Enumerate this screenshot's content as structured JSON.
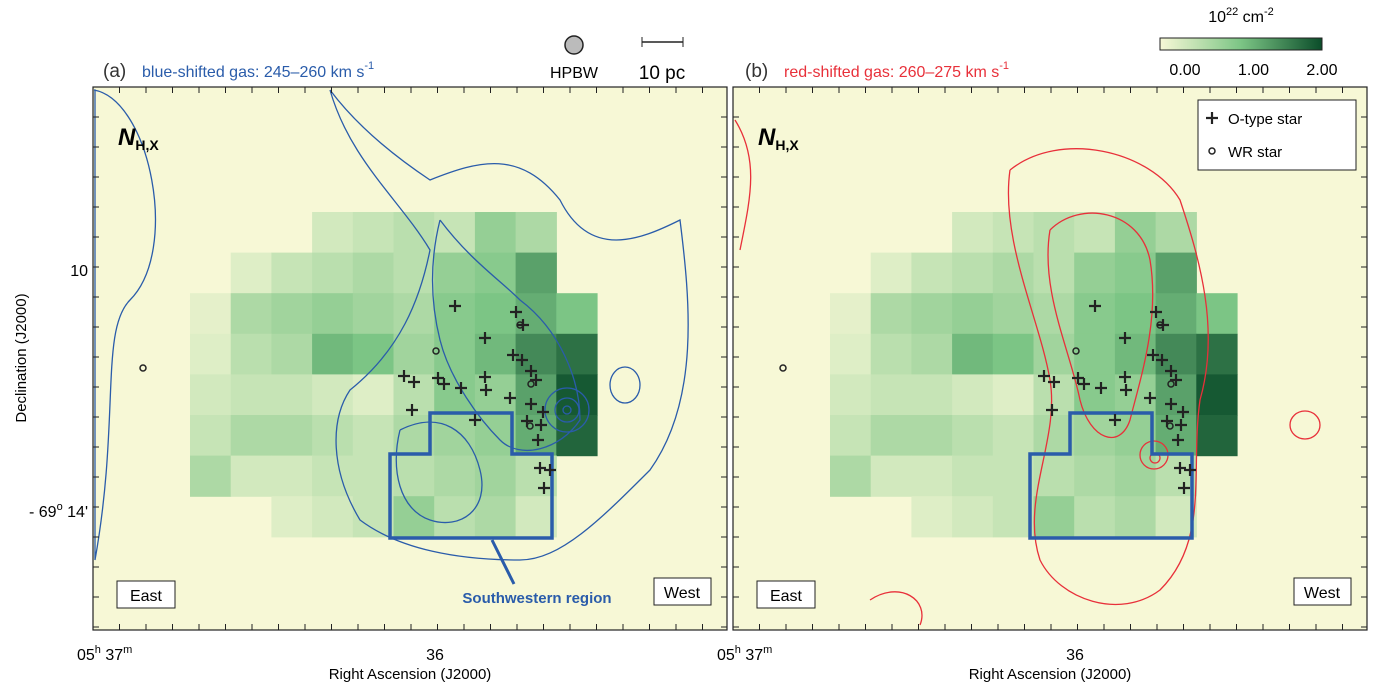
{
  "panels": [
    {
      "label": "(a)",
      "title": "blue-shifted gas: 245–260 km s",
      "title_exp": "-1",
      "quantity": "N",
      "quantity_sub": "H,X",
      "east": "East",
      "west": "West",
      "x_ticks": [
        {
          "base": "05",
          "h": "h",
          "min": " 37",
          "m": "m"
        },
        {
          "label": "36"
        }
      ],
      "x_axis_label": "Right Ascension (J2000)",
      "region_label": "Southwestern region"
    },
    {
      "label": "(b)",
      "title": "red-shifted gas: 260–275 km s",
      "title_exp": "-1",
      "quantity": "N",
      "quantity_sub": "H,X",
      "east": "East",
      "west": "West",
      "x_ticks": [
        {
          "base": "05",
          "h": "h",
          "min": " 37",
          "m": "m"
        },
        {
          "label": "36"
        }
      ],
      "x_axis_label": "Right Ascension (J2000)"
    }
  ],
  "y_axis": {
    "label": "Declination (J2000)",
    "tick_top": "10",
    "tick_bottom": {
      "base": "- 69",
      "deg": "o",
      "min": " 14'"
    }
  },
  "beam": "HPBW",
  "scale_bar": "10 pc",
  "legend": {
    "o_star": "O-type star",
    "wr_star": "WR star"
  },
  "nh_map": {
    "values": [
      [
        null,
        null,
        null,
        0.3,
        0.4,
        0.5,
        0.4,
        0.8,
        0.6,
        null
      ],
      [
        null,
        0.2,
        0.4,
        0.5,
        0.6,
        0.5,
        0.8,
        0.9,
        1.3,
        null
      ],
      [
        0.15,
        0.6,
        0.7,
        0.8,
        0.7,
        0.6,
        0.9,
        1.0,
        1.2,
        1.0
      ],
      [
        0.2,
        0.5,
        0.6,
        1.1,
        1.0,
        0.7,
        0.9,
        1.1,
        1.5,
        1.7
      ],
      [
        0.3,
        0.4,
        0.4,
        0.3,
        0.2,
        0.5,
        0.9,
        0.8,
        1.3,
        1.9
      ],
      [
        0.4,
        0.6,
        0.6,
        0.5,
        0.4,
        0.6,
        0.7,
        0.8,
        1.2,
        1.8
      ],
      [
        0.6,
        0.3,
        0.3,
        0.4,
        0.4,
        0.5,
        0.6,
        0.7,
        0.5,
        null
      ],
      [
        null,
        null,
        0.2,
        0.3,
        0.4,
        0.8,
        0.5,
        0.6,
        0.3,
        null
      ]
    ],
    "colorbar": {
      "unit_base": "10",
      "unit_exp": "22",
      "unit": " cm",
      "unit_exp2": "-2",
      "lim": [
        0,
        2
      ],
      "ticks": [
        {
          "value": 0,
          "label": "0.00"
        },
        {
          "value": 1,
          "label": "1.00"
        },
        {
          "value": 2,
          "label": "2.00"
        }
      ],
      "colors": [
        "#f7f8d6",
        "#7cc585",
        "#0b4d2a"
      ]
    }
  }
}
